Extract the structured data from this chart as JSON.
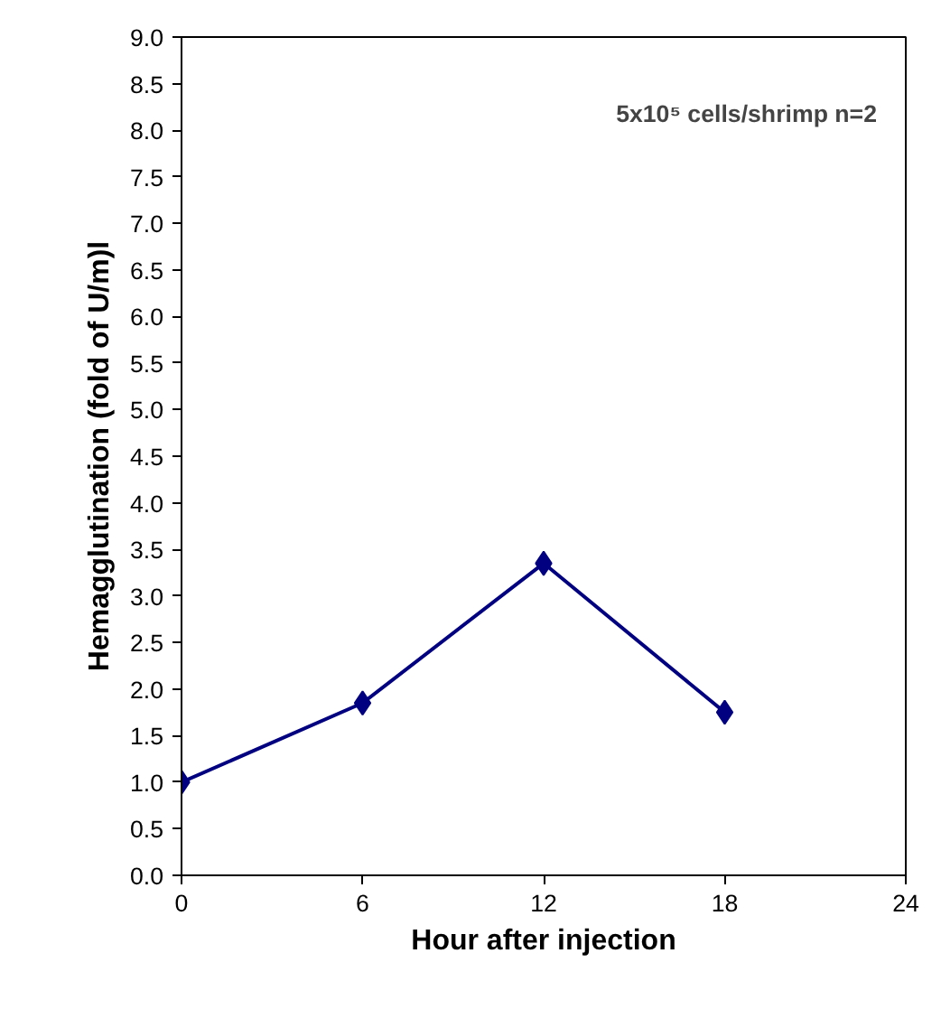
{
  "chart_data": {
    "type": "line",
    "xlabel": "Hour after injection",
    "ylabel": "Hemagglutination (fold of U/m)l",
    "x": [
      0,
      6,
      12,
      18
    ],
    "series": [
      {
        "color": "#000080",
        "values": [
          1.0,
          1.85,
          3.35,
          1.75
        ]
      }
    ],
    "xlim": [
      0,
      24
    ],
    "xticks": [
      0,
      6,
      12,
      18,
      24
    ],
    "ylim": [
      0,
      9
    ],
    "yticks": [
      {
        "value": 0,
        "label": "0.0"
      },
      {
        "value": 0.5,
        "label": "0.5"
      },
      {
        "value": 1,
        "label": "1.0"
      },
      {
        "value": 1.5,
        "label": "1.5"
      },
      {
        "value": 2,
        "label": "2.0"
      },
      {
        "value": 2.5,
        "label": "2.5"
      },
      {
        "value": 3,
        "label": "3.0"
      },
      {
        "value": 3.5,
        "label": "3.5"
      },
      {
        "value": 4,
        "label": "4.0"
      },
      {
        "value": 4.5,
        "label": "4.5"
      },
      {
        "value": 5,
        "label": "5.0"
      },
      {
        "value": 5.5,
        "label": "5.5"
      },
      {
        "value": 6,
        "label": "6.0"
      },
      {
        "value": 6.5,
        "label": "6.5"
      },
      {
        "value": 7,
        "label": "7.0"
      },
      {
        "value": 7.5,
        "label": "7.5"
      },
      {
        "value": 8,
        "label": "8.0"
      },
      {
        "value": 8.5,
        "label": "8.5"
      },
      {
        "value": 9,
        "label": "9.0"
      }
    ],
    "annotations": [
      "5x10⁵ cells/shrimp n=2"
    ],
    "marker": "diamond",
    "line_style": "solid",
    "grid": false
  }
}
